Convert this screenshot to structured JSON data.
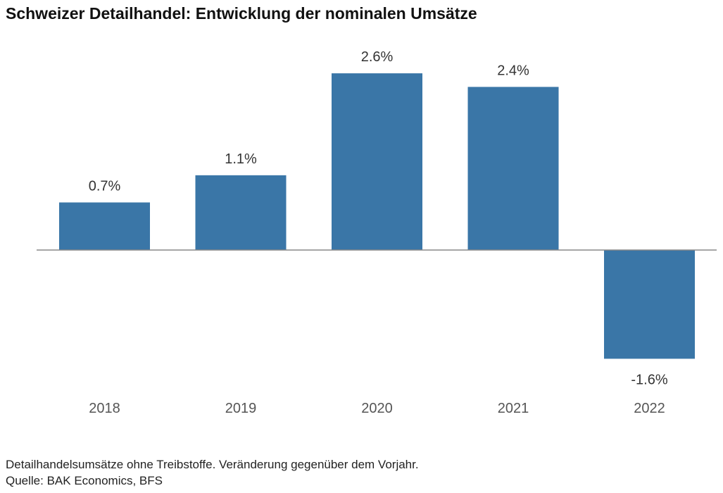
{
  "title": "Schweizer Detailhandel: Entwicklung der nominalen Umsätze",
  "footnote": "Detailhandelsumsätze ohne Treibstoffe. Veränderung gegenüber dem Vorjahr.",
  "source": "Quelle: BAK Economics, BFS",
  "colors": {
    "bar": "#3a76a7",
    "axis": "#888888",
    "label": "#333333",
    "tick": "#555555"
  },
  "chart_data": {
    "type": "bar",
    "title": "Schweizer Detailhandel: Entwicklung der nominalen Umsätze",
    "categories": [
      "2018",
      "2019",
      "2020",
      "2021",
      "2022"
    ],
    "values": [
      0.7,
      1.1,
      2.6,
      2.4,
      -1.6
    ],
    "value_labels": [
      "0.7%",
      "1.1%",
      "2.6%",
      "2.4%",
      "-1.6%"
    ],
    "xlabel": "",
    "ylabel": "",
    "ylim": [
      -2.0,
      3.0
    ],
    "grid": false,
    "legend": "none"
  }
}
